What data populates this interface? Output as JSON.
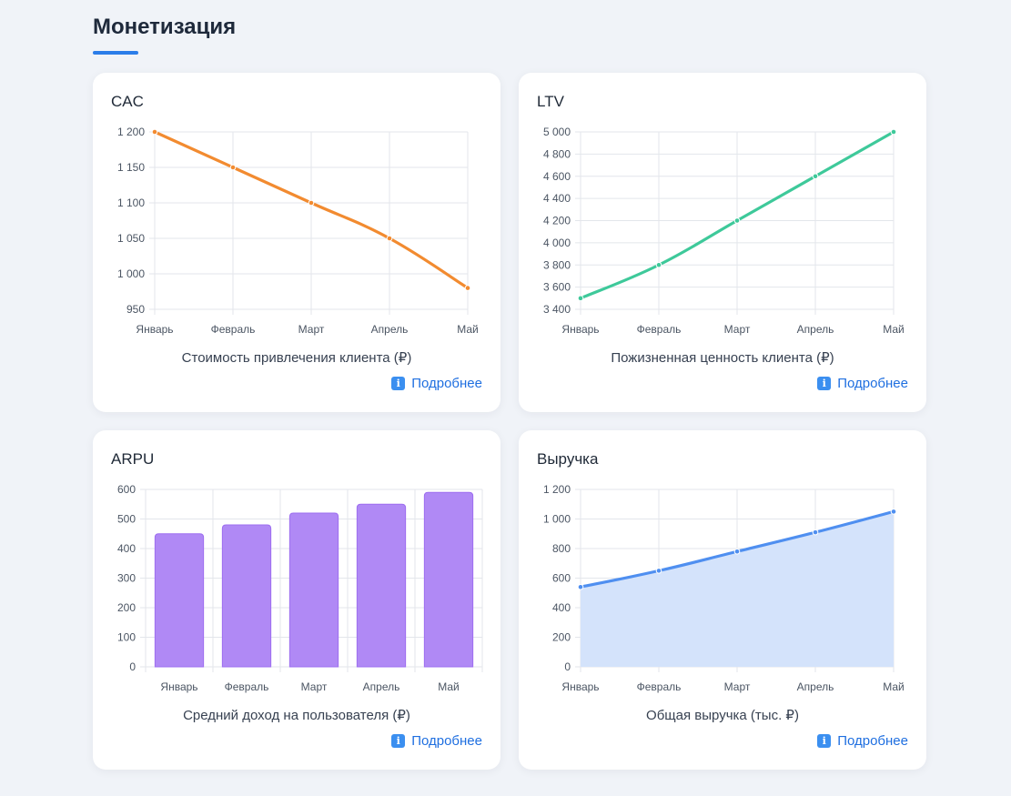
{
  "page": {
    "title": "Монетизация"
  },
  "more_label": "Подробнее",
  "cards": [
    {
      "title": "CAC",
      "caption": "Стоимость привлечения клиента (₽)",
      "chart_data": {
        "type": "line",
        "x": [
          "Январь",
          "Февраль",
          "Март",
          "Апрель",
          "Май"
        ],
        "values": [
          1200,
          1150,
          1100,
          1050,
          980
        ],
        "yticks": [
          "1 200",
          "1 150",
          "1 100",
          "1 050",
          "1 000",
          "950"
        ],
        "ytick_values": [
          1200,
          1150,
          1100,
          1050,
          1000,
          950
        ],
        "ylim": [
          950,
          1200
        ],
        "color": "#f28b30",
        "fill": null,
        "grid": true
      }
    },
    {
      "title": "LTV",
      "caption": "Пожизненная ценность клиента (₽)",
      "chart_data": {
        "type": "line",
        "x": [
          "Январь",
          "Февраль",
          "Март",
          "Апрель",
          "Май"
        ],
        "values": [
          3500,
          3800,
          4200,
          4600,
          5000
        ],
        "yticks": [
          "5 000",
          "4 800",
          "4 600",
          "4 400",
          "4 200",
          "4 000",
          "3 800",
          "3 600",
          "3 400"
        ],
        "ytick_values": [
          5000,
          4800,
          4600,
          4400,
          4200,
          4000,
          3800,
          3600,
          3400
        ],
        "ylim": [
          3400,
          5000
        ],
        "color": "#3ec99a",
        "fill": null,
        "grid": true
      }
    },
    {
      "title": "ARPU",
      "caption": "Средний доход на пользователя (₽)",
      "chart_data": {
        "type": "bar",
        "categories": [
          "Январь",
          "Февраль",
          "Март",
          "Апрель",
          "Май"
        ],
        "values": [
          450,
          480,
          520,
          550,
          590
        ],
        "yticks": [
          "600",
          "500",
          "400",
          "300",
          "200",
          "100",
          "0"
        ],
        "ytick_values": [
          600,
          500,
          400,
          300,
          200,
          100,
          0
        ],
        "ylim": [
          0,
          600
        ],
        "color": "#b089f5",
        "border_color": "#9d6ef0",
        "grid": true
      }
    },
    {
      "title": "Выручка",
      "caption": "Общая выручка (тыс. ₽)",
      "chart_data": {
        "type": "area",
        "x": [
          "Январь",
          "Февраль",
          "Март",
          "Апрель",
          "Май"
        ],
        "values": [
          540,
          650,
          780,
          910,
          1050
        ],
        "yticks": [
          "1 200",
          "1 000",
          "800",
          "600",
          "400",
          "200",
          "0"
        ],
        "ytick_values": [
          1200,
          1000,
          800,
          600,
          400,
          200,
          0
        ],
        "ylim": [
          0,
          1200
        ],
        "color": "#4f8ff0",
        "fill": "#d4e3fb",
        "grid": true
      }
    }
  ]
}
